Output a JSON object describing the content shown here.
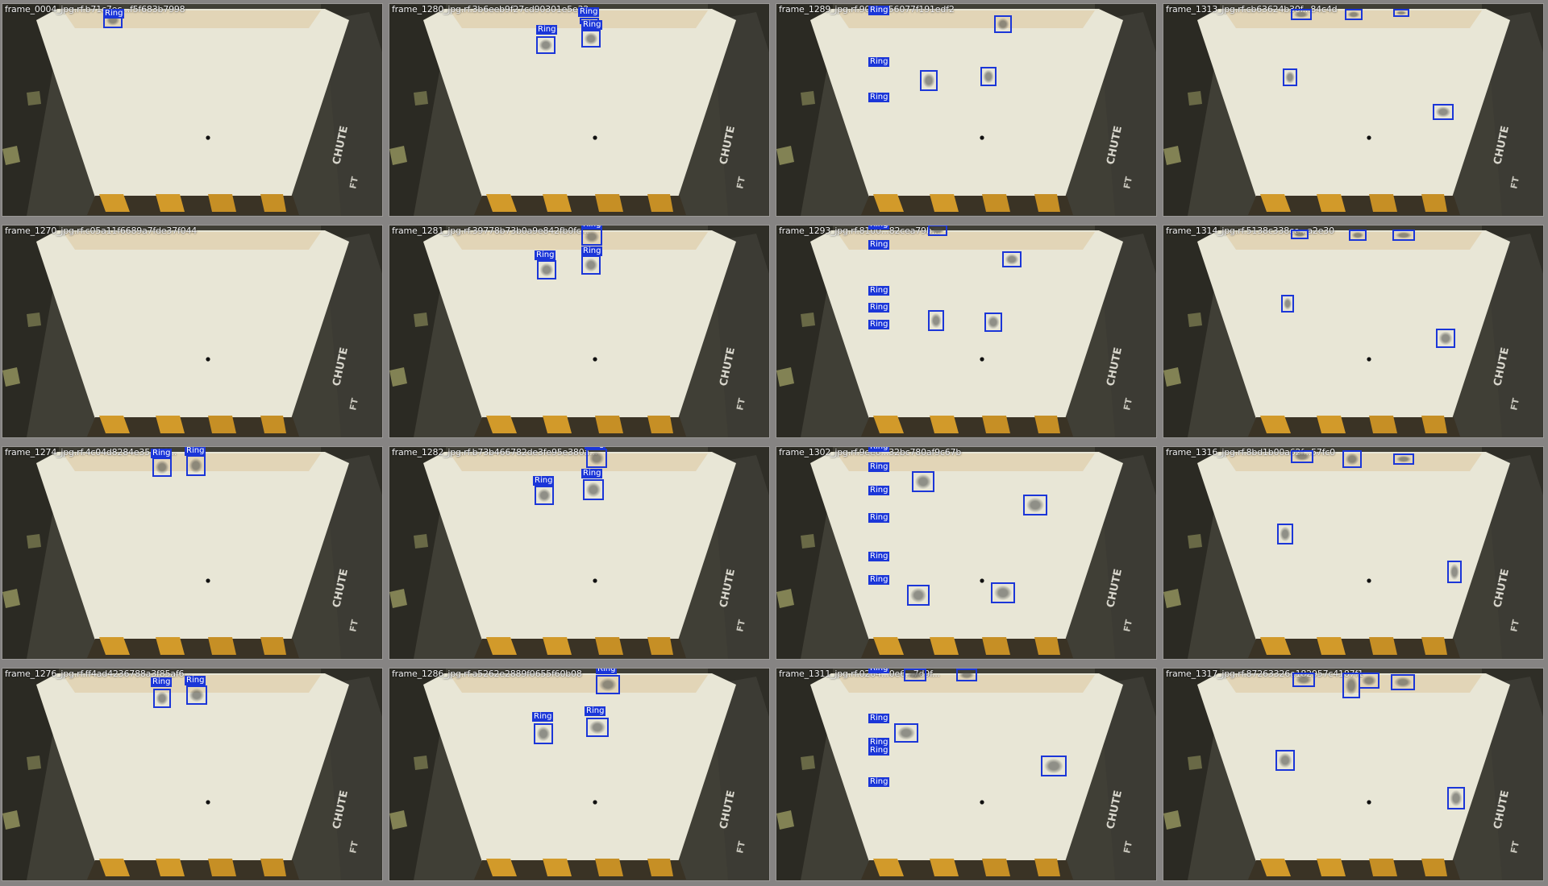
{
  "colors": {
    "box": "#1b36d8",
    "label_text": "#ffffff"
  },
  "tiles": [
    {
      "filename": "frame_0004_jpg.rf.b71c7ec...f5f683b7998",
      "class_labels": [
        "Ring"
      ]
    },
    {
      "filename": "frame_1280_jpg.rf.3b6eeb9f27cd90301e5e32...",
      "class_labels": [
        "Ring",
        "Ring",
        "Ring"
      ]
    },
    {
      "filename": "frame_1289_jpg.rf.90bc...56077f191edf2",
      "class_labels": [
        "Ring",
        "Ring",
        "Ring"
      ]
    },
    {
      "filename": "frame_1313_jpg.rf.cb63624b30f...84c4d",
      "class_labels": []
    },
    {
      "filename": "frame_1270_jpg.rf.c05a11f6689a7fde37f044",
      "class_labels": []
    },
    {
      "filename": "frame_1281_jpg.rf.39778b73b0a9e842fb0fc...",
      "class_labels": [
        "Ring",
        "Ring",
        "Ring"
      ]
    },
    {
      "filename": "frame_1293_jpg.rf.8100...82cea79b...",
      "class_labels": [
        "Ring",
        "Ring",
        "Ring",
        "Ring",
        "Ring"
      ]
    },
    {
      "filename": "frame_1314_jpg.rf.5138c338ce...a2e30",
      "class_labels": []
    },
    {
      "filename": "frame_1274_jpg.rf.4c04d8284e35170f...",
      "class_labels": [
        "Ring",
        "Ring"
      ]
    },
    {
      "filename": "frame_1282_jpg.rf.b73b466782de3fe95e380a...",
      "class_labels": [
        "Ring",
        "Ring",
        "Ring"
      ]
    },
    {
      "filename": "frame_1302_jpg.rf.9ee6...32bc780af9c67b",
      "class_labels": [
        "Ring",
        "Ring",
        "Ring",
        "Ring",
        "Ring",
        "Ring"
      ]
    },
    {
      "filename": "frame_1316_jpg.rf.8bd1b00a62f...57fc0",
      "class_labels": []
    },
    {
      "filename": "frame_1276_jpg.rf.ff4ad4236788a3f85af6...",
      "class_labels": [
        "Ring",
        "Ring"
      ]
    },
    {
      "filename": "frame_1286_jpg.rf.a5262e2889f0655f60b08",
      "class_labels": [
        "Ring",
        "Ring",
        "Ring"
      ]
    },
    {
      "filename": "frame_1311_jpg.rf.0204...0e6...7d9f...",
      "class_labels": [
        "Ring",
        "Ring",
        "Ring",
        "Ring",
        "Ring"
      ]
    },
    {
      "filename": "frame_1317_jpg.rf.87263326e182957c4187f1",
      "class_labels": []
    }
  ]
}
